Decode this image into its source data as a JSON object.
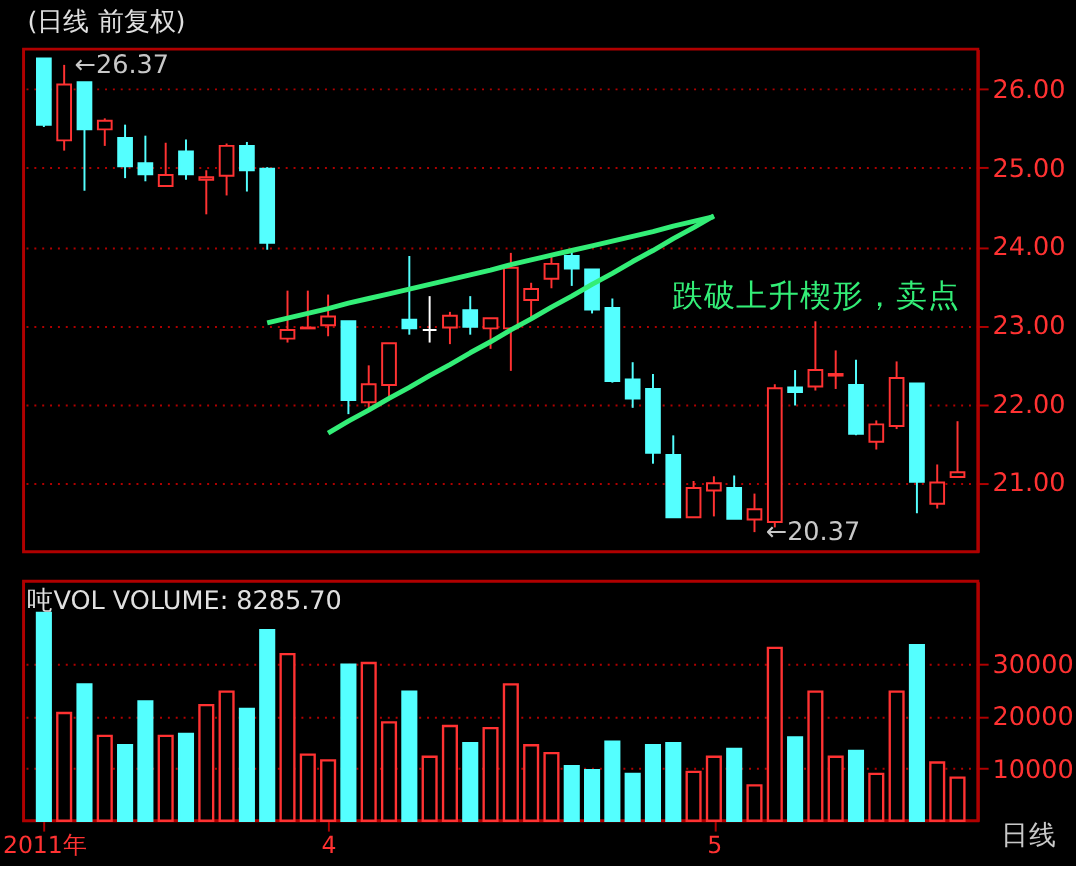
{
  "chart_data": [
    {
      "type": "candlestick",
      "title": "(日线 前复权)",
      "categories": [
        null,
        null,
        null,
        null,
        null,
        null,
        null,
        null,
        null,
        null,
        null,
        null,
        null,
        null,
        null,
        null,
        null,
        null,
        null,
        null,
        null,
        null,
        null,
        null,
        null,
        null,
        null,
        null,
        null,
        null,
        null,
        null,
        null,
        null,
        null,
        null,
        null,
        null,
        null,
        null,
        null,
        null,
        null,
        null,
        null,
        null
      ],
      "ohlc": [
        [
          26.39,
          26.39,
          25.52,
          25.55
        ],
        [
          25.35,
          26.31,
          25.22,
          26.06
        ],
        [
          26.09,
          26.09,
          24.71,
          25.49
        ],
        [
          25.49,
          25.63,
          25.28,
          25.6
        ],
        [
          25.38,
          25.55,
          24.87,
          25.02
        ],
        [
          25.06,
          25.41,
          24.83,
          24.92
        ],
        [
          24.77,
          25.32,
          24.77,
          24.91
        ],
        [
          25.21,
          25.36,
          24.85,
          24.92
        ],
        [
          24.85,
          24.97,
          24.41,
          24.88
        ],
        [
          24.9,
          25.31,
          24.65,
          25.28
        ],
        [
          25.28,
          25.33,
          24.7,
          24.97
        ],
        [
          24.99,
          25.01,
          23.96,
          24.05
        ],
        [
          22.83,
          23.44,
          22.78,
          22.94
        ],
        [
          22.96,
          23.44,
          22.96,
          22.97
        ],
        [
          23.0,
          23.39,
          22.86,
          23.11
        ],
        [
          23.05,
          23.05,
          21.87,
          22.05
        ],
        [
          22.02,
          22.49,
          21.91,
          22.25
        ],
        [
          22.24,
          22.77,
          22.09,
          22.77
        ],
        [
          23.07,
          23.88,
          22.88,
          22.96
        ],
        [
          22.94,
          23.37,
          22.78,
          22.94
        ],
        [
          22.97,
          23.17,
          22.76,
          23.12
        ],
        [
          23.19,
          23.37,
          22.88,
          22.98
        ],
        [
          22.96,
          23.09,
          22.7,
          23.09
        ],
        [
          22.96,
          23.92,
          22.42,
          23.73
        ],
        [
          23.32,
          23.54,
          23.07,
          23.46
        ],
        [
          23.59,
          23.88,
          23.47,
          23.78
        ],
        [
          23.88,
          23.96,
          23.5,
          23.72
        ],
        [
          23.71,
          23.71,
          23.15,
          23.2
        ],
        [
          23.22,
          23.34,
          22.27,
          22.29
        ],
        [
          22.31,
          22.53,
          21.95,
          22.07
        ],
        [
          22.19,
          22.38,
          21.24,
          21.38
        ],
        [
          21.35,
          21.6,
          20.55,
          20.56
        ],
        [
          20.56,
          21.02,
          20.55,
          20.93
        ],
        [
          20.9,
          21.08,
          20.57,
          20.99
        ],
        [
          20.93,
          21.09,
          20.54,
          20.54
        ],
        [
          20.53,
          20.86,
          20.37,
          20.66
        ],
        [
          20.5,
          22.25,
          20.43,
          22.2
        ],
        [
          22.21,
          22.43,
          21.98,
          22.15
        ],
        [
          22.22,
          23.05,
          22.17,
          22.43
        ],
        [
          22.36,
          22.68,
          22.19,
          22.38
        ],
        [
          22.24,
          22.56,
          21.6,
          21.62
        ],
        [
          21.52,
          21.79,
          21.42,
          21.74
        ],
        [
          21.72,
          22.54,
          21.68,
          22.33
        ],
        [
          22.26,
          22.26,
          20.61,
          21.01
        ],
        [
          20.73,
          21.23,
          20.67,
          21.0
        ],
        [
          21.07,
          21.78,
          21.07,
          21.13
        ]
      ],
      "colors": [
        "#54ffff",
        "#ff3232",
        "#54ffff",
        "#ff3232",
        "#54ffff",
        "#54ffff",
        "#ff3232",
        "#54ffff",
        "#ff3232",
        "#ff3232",
        "#54ffff",
        "#54ffff",
        "#ff3232",
        "#ff3232",
        "#ff3232",
        "#54ffff",
        "#ff3232",
        "#ff3232",
        "#54ffff",
        "#ffffff",
        "#ff3232",
        "#54ffff",
        "#ff3232",
        "#ff3232",
        "#ff3232",
        "#ff3232",
        "#54ffff",
        "#54ffff",
        "#54ffff",
        "#54ffff",
        "#54ffff",
        "#54ffff",
        "#ff3232",
        "#ff3232",
        "#54ffff",
        "#ff3232",
        "#ff3232",
        "#54ffff",
        "#ff3232",
        "#ff3232",
        "#54ffff",
        "#ff3232",
        "#ff3232",
        "#54ffff",
        "#ff3232",
        "#ff3232"
      ],
      "series": [
        {
          "type": "line",
          "color": "#33ee77",
          "values": [
            null,
            null,
            null,
            null,
            null,
            null,
            null,
            null,
            null,
            null,
            null,
            23.03,
            23.09,
            23.15,
            23.21,
            23.28,
            23.34,
            23.4,
            23.46,
            23.52,
            23.58,
            23.64,
            23.7,
            23.77,
            23.83,
            23.89,
            23.95,
            24.01,
            24.07,
            24.13,
            24.19,
            24.26,
            24.32,
            24.38,
            null,
            null,
            null,
            null,
            null,
            null,
            null,
            null,
            null,
            null,
            null,
            null
          ]
        },
        {
          "type": "line",
          "color": "#33ee77",
          "values": [
            null,
            null,
            null,
            null,
            null,
            null,
            null,
            null,
            null,
            null,
            null,
            null,
            null,
            null,
            21.63,
            21.78,
            21.92,
            22.07,
            22.21,
            22.36,
            22.5,
            22.65,
            22.79,
            22.94,
            23.08,
            23.23,
            23.37,
            23.52,
            23.66,
            23.81,
            23.95,
            24.1,
            24.24,
            24.39,
            null,
            null,
            null,
            null,
            null,
            null,
            null,
            null,
            null,
            null,
            null,
            null
          ]
        }
      ],
      "ylim": [
        20.12,
        26.51
      ],
      "yticks": [
        {
          "value": 21,
          "label": "21.00"
        },
        {
          "value": 22,
          "label": "22.00"
        },
        {
          "value": 23,
          "label": "23.00"
        },
        {
          "value": 24,
          "label": "24.00"
        },
        {
          "value": 25,
          "label": "25.00"
        },
        {
          "value": 26,
          "label": "26.00"
        }
      ],
      "grid": "y",
      "tick_labels": "y",
      "annotations": [
        "←26.37",
        "←20.37",
        "跌破上升楔形，卖点"
      ]
    },
    {
      "type": "bar",
      "title": "吨VOL VOLUME: 8285.70",
      "categories": [
        "2011年",
        null,
        null,
        null,
        null,
        null,
        null,
        null,
        null,
        null,
        null,
        null,
        null,
        null,
        "4",
        null,
        null,
        null,
        null,
        null,
        null,
        null,
        null,
        null,
        null,
        null,
        null,
        null,
        null,
        null,
        null,
        null,
        null,
        "5",
        null,
        null,
        null,
        null,
        null,
        null,
        null,
        null,
        null,
        null,
        null,
        null
      ],
      "values": [
        39900,
        20700,
        26200,
        16300,
        14500,
        22900,
        16300,
        16700,
        22200,
        24800,
        21500,
        36600,
        32000,
        12700,
        11600,
        30000,
        30300,
        18900,
        24800,
        12300,
        18200,
        14900,
        17800,
        26200,
        14500,
        13000,
        10500,
        9700,
        15200,
        9000,
        14500,
        14900,
        9400,
        12300,
        13800,
        6800,
        33200,
        16000,
        24800,
        12300,
        13400,
        9000,
        24800,
        33700,
        11200,
        8285.7
      ],
      "colors": [
        "#54ffff",
        "#ff3232",
        "#54ffff",
        "#ff3232",
        "#54ffff",
        "#54ffff",
        "#ff3232",
        "#54ffff",
        "#ff3232",
        "#ff3232",
        "#54ffff",
        "#54ffff",
        "#ff3232",
        "#ff3232",
        "#ff3232",
        "#54ffff",
        "#ff3232",
        "#ff3232",
        "#54ffff",
        "#ff3232",
        "#ff3232",
        "#54ffff",
        "#ff3232",
        "#ff3232",
        "#ff3232",
        "#ff3232",
        "#54ffff",
        "#54ffff",
        "#54ffff",
        "#54ffff",
        "#54ffff",
        "#54ffff",
        "#ff3232",
        "#ff3232",
        "#54ffff",
        "#ff3232",
        "#ff3232",
        "#54ffff",
        "#ff3232",
        "#ff3232",
        "#54ffff",
        "#ff3232",
        "#ff3232",
        "#54ffff",
        "#ff3232",
        "#ff3232"
      ],
      "ylim": [
        0,
        46000
      ],
      "yticks": [
        10000,
        20000,
        30000
      ],
      "grid": "y",
      "annotations": [
        "日线"
      ]
    }
  ]
}
